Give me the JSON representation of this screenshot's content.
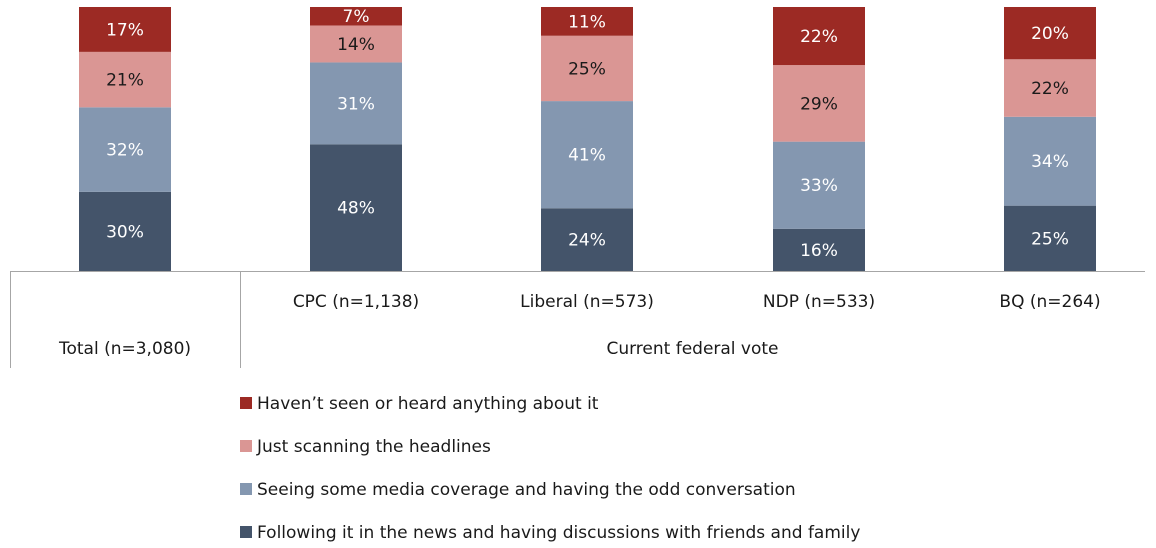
{
  "chart_data": {
    "type": "bar",
    "stacked": true,
    "orientation": "vertical",
    "categories": [
      "Total (n=3,080)",
      "CPC (n=1,138)",
      "Liberal (n=573)",
      "NDP (n=533)",
      "BQ (n=264)"
    ],
    "group_label": "Current federal vote",
    "value_suffix": "%",
    "series": [
      {
        "name": "Following it in the news and having discussions with friends and family",
        "color": "#44546a",
        "values": [
          30,
          48,
          24,
          16,
          25
        ]
      },
      {
        "name": "Seeing some media coverage and having the odd conversation",
        "color": "#8497b0",
        "values": [
          32,
          31,
          41,
          33,
          34
        ]
      },
      {
        "name": "Just scanning the headlines",
        "color": "#da9694",
        "values": [
          21,
          14,
          25,
          29,
          22
        ]
      },
      {
        "name": "Haven’t seen or heard anything about it",
        "color": "#9c2a24",
        "values": [
          17,
          7,
          11,
          22,
          20
        ]
      }
    ],
    "legend_order": [
      3,
      2,
      1,
      0
    ],
    "legend_position": "bottom",
    "grid": false
  }
}
